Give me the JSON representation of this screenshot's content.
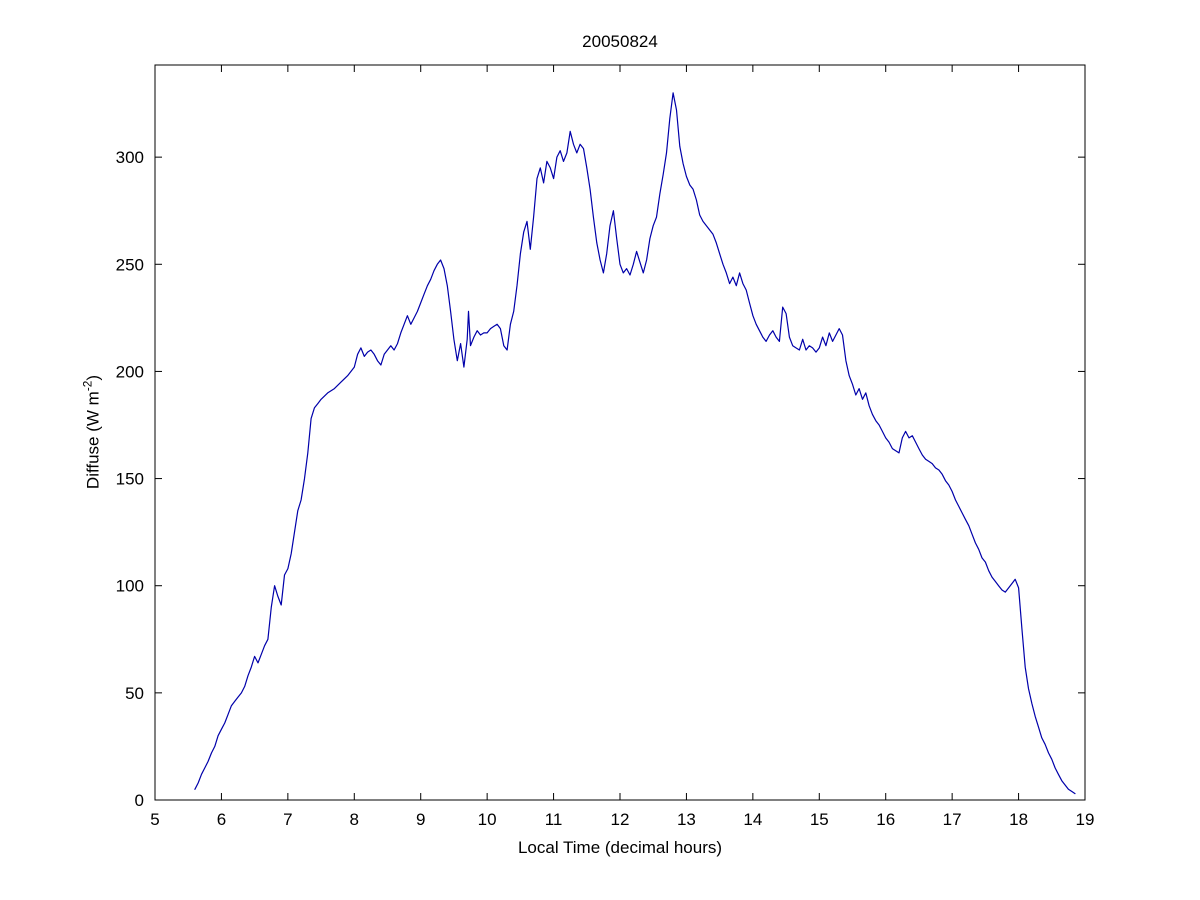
{
  "figure": {
    "title": "20050824",
    "xlabel": "Local Time (decimal hours)",
    "ylabel_pre": "Diffuse (W m",
    "ylabel_sup": "-2",
    "ylabel_post": ")"
  },
  "chart_data": {
    "type": "line",
    "title": "20050824",
    "xlabel": "Local Time (decimal hours)",
    "ylabel": "Diffuse (W m⁻²)",
    "xlim": [
      5,
      19
    ],
    "ylim": [
      0,
      343
    ],
    "xticks": [
      5,
      6,
      7,
      8,
      9,
      10,
      11,
      12,
      13,
      14,
      15,
      16,
      17,
      18,
      19
    ],
    "yticks": [
      0,
      50,
      100,
      150,
      200,
      250,
      300
    ],
    "grid": false,
    "legend": null,
    "line_color": "#0000aa",
    "series": [
      {
        "name": "diffuse",
        "x": [
          5.6,
          5.65,
          5.7,
          5.75,
          5.8,
          5.85,
          5.9,
          5.95,
          6.0,
          6.05,
          6.1,
          6.15,
          6.2,
          6.25,
          6.3,
          6.35,
          6.4,
          6.45,
          6.5,
          6.55,
          6.6,
          6.65,
          6.7,
          6.75,
          6.8,
          6.85,
          6.9,
          6.95,
          7.0,
          7.05,
          7.1,
          7.15,
          7.2,
          7.25,
          7.3,
          7.35,
          7.4,
          7.45,
          7.5,
          7.6,
          7.7,
          7.8,
          7.9,
          8.0,
          8.05,
          8.1,
          8.15,
          8.2,
          8.25,
          8.3,
          8.35,
          8.4,
          8.45,
          8.5,
          8.55,
          8.6,
          8.65,
          8.7,
          8.75,
          8.8,
          8.85,
          8.9,
          8.95,
          9.0,
          9.05,
          9.1,
          9.15,
          9.2,
          9.25,
          9.3,
          9.35,
          9.4,
          9.45,
          9.5,
          9.55,
          9.6,
          9.65,
          9.7,
          9.72,
          9.75,
          9.8,
          9.85,
          9.9,
          9.95,
          10.0,
          10.05,
          10.1,
          10.15,
          10.2,
          10.25,
          10.3,
          10.35,
          10.4,
          10.45,
          10.5,
          10.55,
          10.6,
          10.65,
          10.7,
          10.75,
          10.8,
          10.85,
          10.9,
          10.95,
          11.0,
          11.05,
          11.1,
          11.15,
          11.2,
          11.25,
          11.3,
          11.35,
          11.4,
          11.45,
          11.5,
          11.55,
          11.6,
          11.65,
          11.7,
          11.75,
          11.8,
          11.85,
          11.9,
          11.95,
          12.0,
          12.05,
          12.1,
          12.15,
          12.2,
          12.25,
          12.3,
          12.35,
          12.4,
          12.45,
          12.5,
          12.55,
          12.6,
          12.65,
          12.7,
          12.75,
          12.8,
          12.85,
          12.9,
          12.95,
          13.0,
          13.05,
          13.1,
          13.15,
          13.2,
          13.25,
          13.3,
          13.35,
          13.4,
          13.45,
          13.5,
          13.55,
          13.6,
          13.65,
          13.7,
          13.75,
          13.8,
          13.85,
          13.9,
          13.95,
          14.0,
          14.05,
          14.1,
          14.15,
          14.2,
          14.25,
          14.3,
          14.35,
          14.4,
          14.45,
          14.5,
          14.55,
          14.6,
          14.65,
          14.7,
          14.75,
          14.8,
          14.85,
          14.9,
          14.95,
          15.0,
          15.05,
          15.1,
          15.15,
          15.2,
          15.25,
          15.3,
          15.35,
          15.4,
          15.45,
          15.5,
          15.55,
          15.6,
          15.65,
          15.7,
          15.75,
          15.8,
          15.85,
          15.9,
          15.95,
          16.0,
          16.05,
          16.1,
          16.15,
          16.2,
          16.25,
          16.3,
          16.35,
          16.4,
          16.45,
          16.5,
          16.55,
          16.6,
          16.65,
          16.7,
          16.75,
          16.8,
          16.85,
          16.9,
          16.95,
          17.0,
          17.05,
          17.1,
          17.15,
          17.2,
          17.25,
          17.3,
          17.35,
          17.4,
          17.45,
          17.5,
          17.55,
          17.6,
          17.65,
          17.7,
          17.75,
          17.8,
          17.85,
          17.9,
          17.95,
          18.0,
          18.05,
          18.1,
          18.15,
          18.2,
          18.25,
          18.3,
          18.35,
          18.4,
          18.45,
          18.5,
          18.55,
          18.6,
          18.65,
          18.7,
          18.75,
          18.8,
          18.85
        ],
        "y": [
          5,
          8,
          12,
          15,
          18,
          22,
          25,
          30,
          33,
          36,
          40,
          44,
          46,
          48,
          50,
          53,
          58,
          62,
          67,
          64,
          68,
          72,
          75,
          90,
          100,
          95,
          91,
          105,
          108,
          115,
          125,
          135,
          140,
          150,
          162,
          178,
          183,
          185,
          187,
          190,
          192,
          195,
          198,
          202,
          208,
          211,
          207,
          209,
          210,
          208,
          205,
          203,
          208,
          210,
          212,
          210,
          213,
          218,
          222,
          226,
          222,
          225,
          228,
          232,
          236,
          240,
          243,
          247,
          250,
          252,
          248,
          240,
          228,
          215,
          205,
          213,
          202,
          215,
          228,
          212,
          216,
          219,
          217,
          218,
          218,
          220,
          221,
          222,
          220,
          212,
          210,
          222,
          228,
          240,
          255,
          265,
          270,
          257,
          272,
          290,
          295,
          288,
          298,
          295,
          290,
          300,
          303,
          298,
          302,
          312,
          306,
          302,
          306,
          304,
          295,
          285,
          272,
          260,
          252,
          246,
          255,
          268,
          275,
          262,
          250,
          246,
          248,
          245,
          250,
          256,
          251,
          246,
          252,
          262,
          268,
          272,
          283,
          292,
          302,
          318,
          330,
          322,
          305,
          297,
          291,
          287,
          285,
          280,
          273,
          270,
          268,
          266,
          264,
          260,
          255,
          250,
          246,
          241,
          244,
          240,
          246,
          241,
          238,
          232,
          226,
          222,
          219,
          216,
          214,
          217,
          219,
          216,
          214,
          230,
          227,
          216,
          212,
          211,
          210,
          215,
          210,
          212,
          211,
          209,
          211,
          216,
          212,
          218,
          214,
          217,
          220,
          217,
          205,
          198,
          194,
          189,
          192,
          187,
          190,
          184,
          180,
          177,
          175,
          172,
          169,
          167,
          164,
          163,
          162,
          169,
          172,
          169,
          170,
          167,
          164,
          161,
          159,
          158,
          157,
          155,
          154,
          152,
          149,
          147,
          144,
          140,
          137,
          134,
          131,
          128,
          124,
          120,
          117,
          113,
          111,
          107,
          104,
          102,
          100,
          98,
          97,
          99,
          101,
          103,
          99,
          80,
          62,
          52,
          45,
          39,
          34,
          29,
          26,
          22,
          19,
          15,
          12,
          9,
          7,
          5,
          4,
          3
        ]
      }
    ]
  }
}
